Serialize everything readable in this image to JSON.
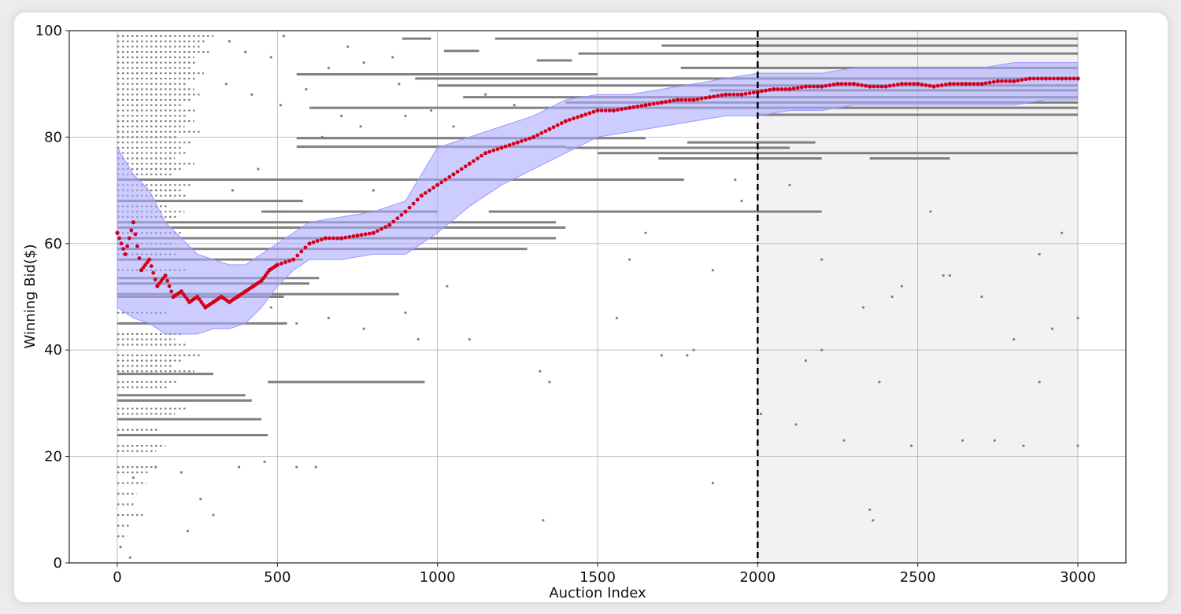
{
  "chart_data": {
    "type": "scatter",
    "title": "",
    "xlabel": "Auction Index",
    "ylabel": "Winning Bid($)",
    "xlim": [
      -150,
      3150
    ],
    "ylim": [
      0,
      100
    ],
    "xticks": [
      0,
      500,
      1000,
      1500,
      2000,
      2500,
      3000
    ],
    "yticks": [
      0,
      20,
      40,
      60,
      80,
      100
    ],
    "grid": true,
    "vline": {
      "x": 2000,
      "style": "dashed",
      "color": "#000000"
    },
    "shaded_region": {
      "x": [
        2000,
        3000
      ],
      "color": "#f2f2f2"
    },
    "colors": {
      "winning": "#d0021b",
      "band": "#aaaaff",
      "bids": "#808080"
    },
    "winning_bid": {
      "x": [
        0,
        25,
        50,
        75,
        100,
        125,
        150,
        175,
        200,
        225,
        250,
        275,
        300,
        325,
        350,
        375,
        400,
        425,
        450,
        475,
        500,
        550,
        600,
        650,
        700,
        750,
        800,
        850,
        900,
        950,
        1000,
        1050,
        1100,
        1150,
        1200,
        1250,
        1300,
        1350,
        1400,
        1450,
        1500,
        1550,
        1600,
        1650,
        1700,
        1750,
        1800,
        1850,
        1900,
        1950,
        2000,
        2050,
        2100,
        2150,
        2200,
        2250,
        2300,
        2350,
        2400,
        2450,
        2500,
        2550,
        2600,
        2650,
        2700,
        2750,
        2800,
        2850,
        2900,
        2950,
        3000
      ],
      "y": [
        62,
        58,
        64,
        55,
        57,
        52,
        54,
        50,
        51,
        49,
        50,
        48,
        49,
        50,
        49,
        50,
        51,
        52,
        53,
        55,
        56,
        57,
        60,
        61,
        61,
        61.5,
        62,
        63.5,
        66,
        69,
        71,
        73,
        75,
        77,
        78,
        79,
        80,
        81.5,
        83,
        84,
        85,
        85,
        85.5,
        86,
        86.5,
        87,
        87,
        87.5,
        88,
        88,
        88.5,
        89,
        89,
        89.5,
        89.5,
        90,
        90,
        89.5,
        89.5,
        90,
        90,
        89.5,
        90,
        90,
        90,
        90.5,
        90.5,
        91,
        91,
        91,
        91
      ]
    },
    "band": {
      "x": [
        0,
        50,
        100,
        150,
        200,
        250,
        300,
        350,
        400,
        450,
        500,
        550,
        600,
        700,
        800,
        900,
        1000,
        1100,
        1200,
        1300,
        1400,
        1500,
        1600,
        1700,
        1800,
        1900,
        2000,
        2100,
        2200,
        2300,
        2400,
        2500,
        2600,
        2700,
        2800,
        2900,
        3000
      ],
      "lower": [
        48,
        46,
        45,
        43,
        43,
        43,
        44,
        44,
        45,
        48,
        52,
        55,
        57,
        57,
        58,
        58,
        62,
        67,
        71,
        74,
        77,
        80,
        81,
        82,
        83,
        84,
        84,
        85,
        85,
        86,
        86,
        86,
        86,
        86,
        86,
        87,
        87
      ],
      "upper": [
        78,
        73,
        70,
        64,
        61,
        58,
        57,
        56,
        56,
        58,
        60,
        62,
        64,
        65,
        66,
        68,
        78,
        80,
        82,
        84,
        87,
        88,
        88,
        89,
        90,
        91,
        92,
        92,
        92,
        93,
        93,
        93,
        93,
        93,
        94,
        94,
        94
      ]
    },
    "bid_segments": [
      [
        890,
        980,
        98.5
      ],
      [
        1180,
        3000,
        98.5
      ],
      [
        1700,
        3000,
        97.2
      ],
      [
        1020,
        1130,
        96.2
      ],
      [
        1440,
        3000,
        95.7
      ],
      [
        1310,
        1420,
        94.4
      ],
      [
        1760,
        3000,
        93
      ],
      [
        560,
        1500,
        91.8
      ],
      [
        930,
        3000,
        91
      ],
      [
        1000,
        3000,
        89.7
      ],
      [
        1850,
        3000,
        88.8
      ],
      [
        1080,
        3000,
        87.5
      ],
      [
        1400,
        3000,
        86.5
      ],
      [
        600,
        3000,
        85.5
      ],
      [
        2000,
        3000,
        84.2
      ],
      [
        1780,
        2180,
        79
      ],
      [
        560,
        1650,
        79.8
      ],
      [
        560,
        1400,
        78.2
      ],
      [
        1400,
        2100,
        78
      ],
      [
        1500,
        3000,
        77
      ],
      [
        1690,
        2200,
        76
      ],
      [
        2350,
        2600,
        76
      ],
      [
        0,
        1770,
        72
      ],
      [
        0,
        580,
        68
      ],
      [
        450,
        1000,
        66
      ],
      [
        1160,
        2200,
        66
      ],
      [
        0,
        1370,
        64
      ],
      [
        0,
        1400,
        63
      ],
      [
        0,
        1370,
        61
      ],
      [
        0,
        1280,
        59
      ],
      [
        0,
        580,
        57
      ],
      [
        0,
        630,
        53.5
      ],
      [
        0,
        600,
        52.5
      ],
      [
        0,
        880,
        50.5
      ],
      [
        0,
        520,
        50
      ],
      [
        0,
        530,
        45
      ],
      [
        470,
        960,
        34
      ],
      [
        0,
        300,
        35.5
      ],
      [
        0,
        400,
        31.5
      ],
      [
        0,
        420,
        30.5
      ],
      [
        0,
        450,
        27
      ],
      [
        0,
        470,
        24
      ]
    ],
    "bid_dotted_rows": [
      [
        0,
        300,
        99
      ],
      [
        0,
        280,
        98
      ],
      [
        0,
        260,
        97
      ],
      [
        0,
        290,
        96
      ],
      [
        0,
        240,
        95
      ],
      [
        0,
        250,
        94
      ],
      [
        0,
        230,
        93
      ],
      [
        0,
        270,
        92
      ],
      [
        0,
        250,
        91
      ],
      [
        0,
        220,
        90
      ],
      [
        0,
        240,
        89
      ],
      [
        0,
        260,
        88
      ],
      [
        0,
        230,
        87
      ],
      [
        0,
        200,
        86
      ],
      [
        0,
        250,
        85
      ],
      [
        0,
        220,
        84
      ],
      [
        0,
        240,
        83
      ],
      [
        0,
        210,
        82
      ],
      [
        0,
        260,
        81
      ],
      [
        0,
        190,
        80
      ],
      [
        0,
        230,
        79
      ],
      [
        0,
        200,
        78
      ],
      [
        0,
        220,
        77
      ],
      [
        0,
        180,
        76
      ],
      [
        0,
        240,
        75
      ],
      [
        0,
        200,
        74
      ],
      [
        0,
        170,
        73
      ],
      [
        0,
        230,
        71
      ],
      [
        0,
        200,
        70
      ],
      [
        0,
        220,
        69
      ],
      [
        0,
        160,
        67
      ],
      [
        0,
        210,
        66
      ],
      [
        0,
        190,
        65
      ],
      [
        0,
        200,
        62
      ],
      [
        0,
        170,
        60
      ],
      [
        0,
        190,
        58
      ],
      [
        0,
        220,
        55
      ],
      [
        0,
        160,
        47
      ],
      [
        0,
        200,
        43
      ],
      [
        0,
        180,
        42
      ],
      [
        0,
        220,
        41
      ],
      [
        0,
        260,
        39
      ],
      [
        0,
        200,
        38
      ],
      [
        0,
        170,
        37
      ],
      [
        0,
        240,
        36
      ],
      [
        0,
        190,
        34
      ],
      [
        0,
        160,
        33
      ],
      [
        0,
        220,
        29
      ],
      [
        0,
        180,
        28
      ],
      [
        0,
        130,
        25
      ],
      [
        0,
        150,
        22
      ],
      [
        0,
        120,
        21
      ],
      [
        0,
        110,
        18
      ],
      [
        0,
        100,
        17
      ],
      [
        0,
        90,
        15
      ],
      [
        0,
        60,
        13
      ],
      [
        0,
        50,
        11
      ],
      [
        0,
        80,
        9
      ],
      [
        0,
        40,
        7
      ],
      [
        0,
        30,
        5
      ]
    ],
    "bid_dots": [
      [
        350,
        98
      ],
      [
        400,
        96
      ],
      [
        480,
        95
      ],
      [
        520,
        99
      ],
      [
        660,
        93
      ],
      [
        720,
        97
      ],
      [
        770,
        94
      ],
      [
        340,
        90
      ],
      [
        420,
        88
      ],
      [
        510,
        86
      ],
      [
        590,
        89
      ],
      [
        700,
        84
      ],
      [
        860,
        95
      ],
      [
        880,
        90
      ],
      [
        760,
        82
      ],
      [
        640,
        80
      ],
      [
        900,
        84
      ],
      [
        980,
        85
      ],
      [
        1050,
        82
      ],
      [
        1150,
        88
      ],
      [
        1240,
        86
      ],
      [
        360,
        70
      ],
      [
        440,
        74
      ],
      [
        520,
        66
      ],
      [
        800,
        70
      ],
      [
        480,
        48
      ],
      [
        560,
        45
      ],
      [
        660,
        46
      ],
      [
        770,
        44
      ],
      [
        900,
        47
      ],
      [
        940,
        42
      ],
      [
        1030,
        52
      ],
      [
        1100,
        42
      ],
      [
        1320,
        36
      ],
      [
        1350,
        34
      ],
      [
        1330,
        8
      ],
      [
        1560,
        46
      ],
      [
        1700,
        39
      ],
      [
        1780,
        39
      ],
      [
        1800,
        40
      ],
      [
        1860,
        15
      ],
      [
        1930,
        72
      ],
      [
        1950,
        68
      ],
      [
        2010,
        28
      ],
      [
        2100,
        71
      ],
      [
        2120,
        26
      ],
      [
        2200,
        40
      ],
      [
        2270,
        23
      ],
      [
        2330,
        48
      ],
      [
        2350,
        10
      ],
      [
        2360,
        8
      ],
      [
        2380,
        34
      ],
      [
        2420,
        50
      ],
      [
        2480,
        22
      ],
      [
        2540,
        66
      ],
      [
        2580,
        54
      ],
      [
        2640,
        23
      ],
      [
        2700,
        50
      ],
      [
        2740,
        23
      ],
      [
        2800,
        42
      ],
      [
        2830,
        22
      ],
      [
        2880,
        34
      ],
      [
        2920,
        44
      ],
      [
        3000,
        46
      ],
      [
        3000,
        22
      ],
      [
        2950,
        62
      ],
      [
        2880,
        58
      ],
      [
        2600,
        54
      ],
      [
        2450,
        52
      ],
      [
        2200,
        57
      ],
      [
        2150,
        38
      ],
      [
        1600,
        57
      ],
      [
        1650,
        62
      ],
      [
        1750,
        72
      ],
      [
        1860,
        55
      ],
      [
        120,
        18
      ],
      [
        200,
        17
      ],
      [
        260,
        12
      ],
      [
        220,
        6
      ],
      [
        300,
        9
      ],
      [
        380,
        18
      ],
      [
        560,
        18
      ],
      [
        620,
        18
      ],
      [
        460,
        19
      ],
      [
        40,
        1
      ],
      [
        10,
        3
      ],
      [
        50,
        16
      ]
    ]
  }
}
